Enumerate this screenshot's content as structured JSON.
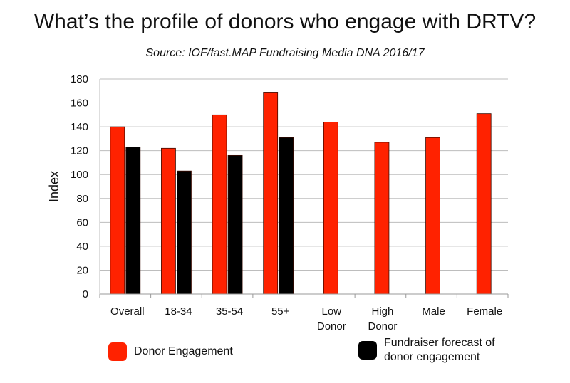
{
  "chart_data": {
    "type": "bar",
    "title": "What’s the profile of donors who engage with DRTV?",
    "subtitle": "Source: IOF/fast.MAP Fundraising Media DNA 2016/17",
    "xlabel": "",
    "ylabel": "Index",
    "ylim": [
      0,
      180
    ],
    "yticks": [
      0,
      20,
      40,
      60,
      80,
      100,
      120,
      140,
      160,
      180
    ],
    "grid": true,
    "legend_placement": "bottom",
    "categories": [
      "Overall",
      "18-34",
      "35-54",
      "55+",
      "Low Donor",
      "High Donor",
      "Male",
      "Female"
    ],
    "category_lines": [
      [
        "Overall"
      ],
      [
        "18-34"
      ],
      [
        "35-54"
      ],
      [
        "55+"
      ],
      [
        "Low",
        "Donor"
      ],
      [
        "High",
        "Donor"
      ],
      [
        "Male"
      ],
      [
        "Female"
      ]
    ],
    "series": [
      {
        "name": "Donor Engagement",
        "color": "#ff2200",
        "values": [
          140,
          122,
          150,
          169,
          144,
          127,
          131,
          151
        ]
      },
      {
        "name": "Fundraiser forecast of donor engagement",
        "legend_lines": [
          "Fundraiser forecast of",
          "donor engagement"
        ],
        "color": "#000000",
        "values": [
          123,
          103,
          116,
          131,
          null,
          null,
          null,
          null
        ]
      }
    ]
  }
}
